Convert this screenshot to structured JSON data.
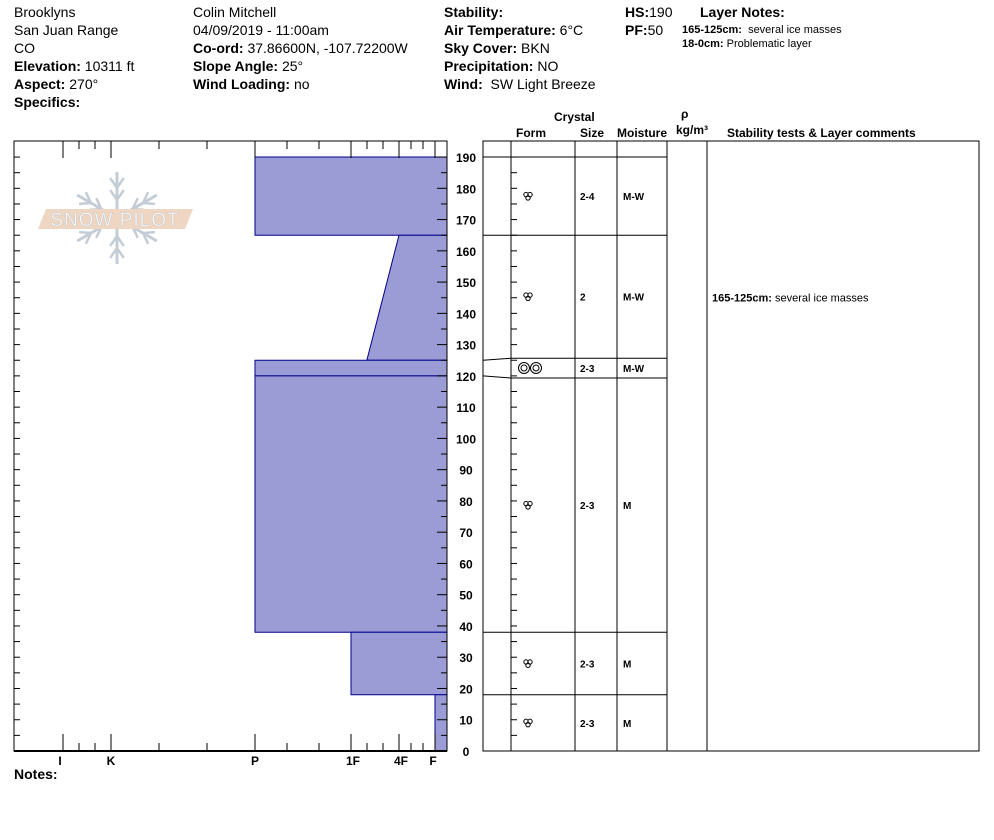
{
  "header": {
    "location": "Brooklyns",
    "range": "San Juan Range",
    "state": "CO",
    "elevation_label": "Elevation:",
    "elevation": "10311 ft",
    "aspect_label": "Aspect:",
    "aspect": "270°",
    "specifics_label": "Specifics:",
    "observer": "Colin Mitchell",
    "datetime": "04/09/2019 - 11:00am",
    "coord_label": "Co-ord:",
    "coord": "37.86600N, -107.72200W",
    "slope_label": "Slope Angle:",
    "slope": "25°",
    "wind_loading_label": "Wind Loading:",
    "wind_loading": "no",
    "stability_label": "Stability:",
    "air_temp_label": "Air Temperature:",
    "air_temp": "6°C",
    "sky_label": "Sky Cover:",
    "sky": "BKN",
    "precip_label": "Precipitation:",
    "precip": "NO",
    "wind_label": "Wind:",
    "wind": "SW Light Breeze",
    "hs_label": "HS:",
    "hs": "190",
    "pf_label": "PF:",
    "pf": "50",
    "layer_notes_label": "Layer Notes:",
    "layer_notes": [
      {
        "range": "165-125cm:",
        "text": "several ice masses"
      },
      {
        "range": "18-0cm:",
        "text": "Problematic layer"
      }
    ]
  },
  "table_header": {
    "crystal": "Crystal",
    "form": "Form",
    "size": "Size",
    "moisture": "Moisture",
    "rho": "ρ",
    "density_unit": "kg/m³",
    "comments": "Stability tests & Layer comments"
  },
  "notes_label": "Notes:",
  "logo_text": "SNOW PILOT",
  "colors": {
    "profile_fill": "#9b9bd5",
    "profile_stroke": "#00008b"
  },
  "chart_data": {
    "type": "snow-profile",
    "depth_axis": {
      "unit": "cm",
      "range": [
        0,
        195
      ],
      "ticks": [
        0,
        10,
        20,
        30,
        40,
        50,
        60,
        70,
        80,
        90,
        100,
        110,
        120,
        130,
        140,
        150,
        160,
        170,
        180,
        190
      ]
    },
    "hardness_scale": [
      "F",
      "4F",
      "1F",
      "P",
      "K",
      "I"
    ],
    "hardness_profile": [
      {
        "top": 190,
        "bottom": 165,
        "hardness_top": 4,
        "hardness_bottom": 4
      },
      {
        "top": 165,
        "bottom": 125,
        "hardness_top": 2,
        "hardness_bottom": 2.67
      },
      {
        "top": 125,
        "bottom": 120,
        "hardness_top": 4,
        "hardness_bottom": 4
      },
      {
        "top": 120,
        "bottom": 38,
        "hardness_top": 4,
        "hardness_bottom": 4
      },
      {
        "top": 38,
        "bottom": 18,
        "hardness_top": 3,
        "hardness_bottom": 3
      },
      {
        "top": 18,
        "bottom": 0,
        "hardness_top": 1,
        "hardness_bottom": 1
      }
    ],
    "layers": [
      {
        "top": 190,
        "bottom": 165,
        "form": "clustered-rounded",
        "size": "2-4",
        "moisture": "M-W"
      },
      {
        "top": 165,
        "bottom": 125,
        "form": "clustered-rounded",
        "size": "2",
        "moisture": "M-W"
      },
      {
        "top": 125,
        "bottom": 119,
        "form": "melt-freeze-pair",
        "size": "2-3",
        "moisture": "M-W"
      },
      {
        "top": 119,
        "bottom": 38,
        "form": "clustered-rounded",
        "size": "2-3",
        "moisture": "M"
      },
      {
        "top": 38,
        "bottom": 18,
        "form": "clustered-rounded",
        "size": "2-3",
        "moisture": "M"
      },
      {
        "top": 18,
        "bottom": 0,
        "form": "clustered-rounded",
        "size": "2-3",
        "moisture": "M"
      }
    ],
    "comments": [
      {
        "depth_center": 145,
        "range": "165-125cm:",
        "text": "several ice masses"
      }
    ]
  }
}
